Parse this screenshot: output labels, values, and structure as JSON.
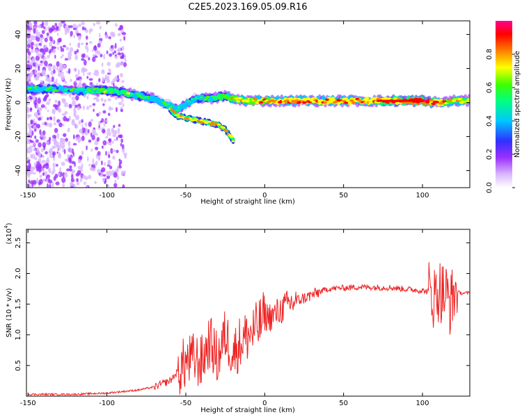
{
  "title": "C2E5.2023.169.05.09.R16",
  "chart_data": [
    {
      "type": "heatmap",
      "xlabel": "Height of straight line (km)",
      "ylabel": "Frequency (Hz)",
      "xlim": [
        -151,
        130
      ],
      "ylim": [
        -50,
        48
      ],
      "xticks": [
        -150,
        -100,
        -50,
        0,
        50,
        100
      ],
      "yticks": [
        -40,
        -20,
        0,
        20,
        40
      ],
      "colorbar": {
        "label": "Normalized spectral amplitude",
        "range": [
          0,
          1
        ],
        "ticks": [
          "0.0",
          "0.2",
          "0.4",
          "0.6",
          "0.8"
        ],
        "colors": [
          "#ffffff",
          "#d9b8ff",
          "#9b30ff",
          "#3030ff",
          "#00c8ff",
          "#00ff80",
          "#40ff00",
          "#ffff00",
          "#ff8000",
          "#ff0000",
          "#ff0090"
        ]
      },
      "ridge": {
        "x": [
          -150,
          -140,
          -130,
          -120,
          -110,
          -100,
          -90,
          -80,
          -70,
          -60,
          -55,
          -50,
          -45,
          -40,
          -35,
          -30,
          -25,
          -20,
          -10,
          0,
          10,
          20,
          40,
          60,
          80,
          100,
          110,
          120,
          130
        ],
        "frequency": [
          8,
          8,
          8,
          7,
          7,
          7,
          6,
          4,
          2,
          -2,
          -4,
          -1,
          2,
          3,
          2,
          3,
          4,
          2,
          1,
          1,
          1,
          1,
          1,
          1,
          1,
          1,
          0,
          1,
          1
        ],
        "amplitude": [
          0.5,
          0.5,
          0.45,
          0.45,
          0.5,
          0.55,
          0.55,
          0.5,
          0.5,
          0.45,
          0.45,
          0.45,
          0.45,
          0.5,
          0.5,
          0.55,
          0.6,
          0.7,
          0.75,
          0.75,
          0.8,
          0.8,
          0.8,
          0.8,
          0.85,
          0.95,
          0.8,
          0.7,
          0.7
        ]
      },
      "branch": {
        "x": [
          -60,
          -55,
          -50,
          -40,
          -30,
          -25,
          -20
        ],
        "frequency": [
          -4,
          -8,
          -9,
          -11,
          -13,
          -16,
          -22
        ]
      }
    },
    {
      "type": "line",
      "xlabel": "Height of straight line (km)",
      "ylabel": "SNR (10 * v/v)",
      "ylabel_scale": "(x10",
      "ylabel_exponent": "4",
      "ylabel_scale_close": ")",
      "xlim": [
        -151,
        130
      ],
      "ylim": [
        0,
        2.72
      ],
      "xticks": [
        -150,
        -100,
        -50,
        0,
        50,
        100
      ],
      "yticks": [
        0.5,
        1.0,
        1.5,
        2.0,
        2.5
      ],
      "color": "#ee2222",
      "series": [
        {
          "x": [
            -150,
            -120,
            -100,
            -80,
            -70,
            -60,
            -55,
            -50,
            -45,
            -40,
            -35,
            -30,
            -25,
            -20,
            -15,
            -10,
            -5,
            0,
            5,
            10,
            15,
            20,
            30,
            40,
            60,
            80,
            100,
            105,
            108,
            110,
            112,
            115,
            118,
            120,
            125,
            130
          ],
          "y": [
            0.03,
            0.03,
            0.05,
            0.1,
            0.15,
            0.25,
            0.4,
            0.55,
            0.6,
            0.55,
            0.9,
            0.6,
            1.0,
            0.7,
            0.9,
            1.0,
            1.1,
            1.3,
            1.3,
            1.4,
            1.5,
            1.55,
            1.65,
            1.75,
            1.78,
            1.77,
            1.72,
            1.7,
            1.6,
            1.75,
            1.7,
            1.65,
            1.5,
            1.7,
            1.68,
            1.68
          ]
        }
      ]
    }
  ]
}
